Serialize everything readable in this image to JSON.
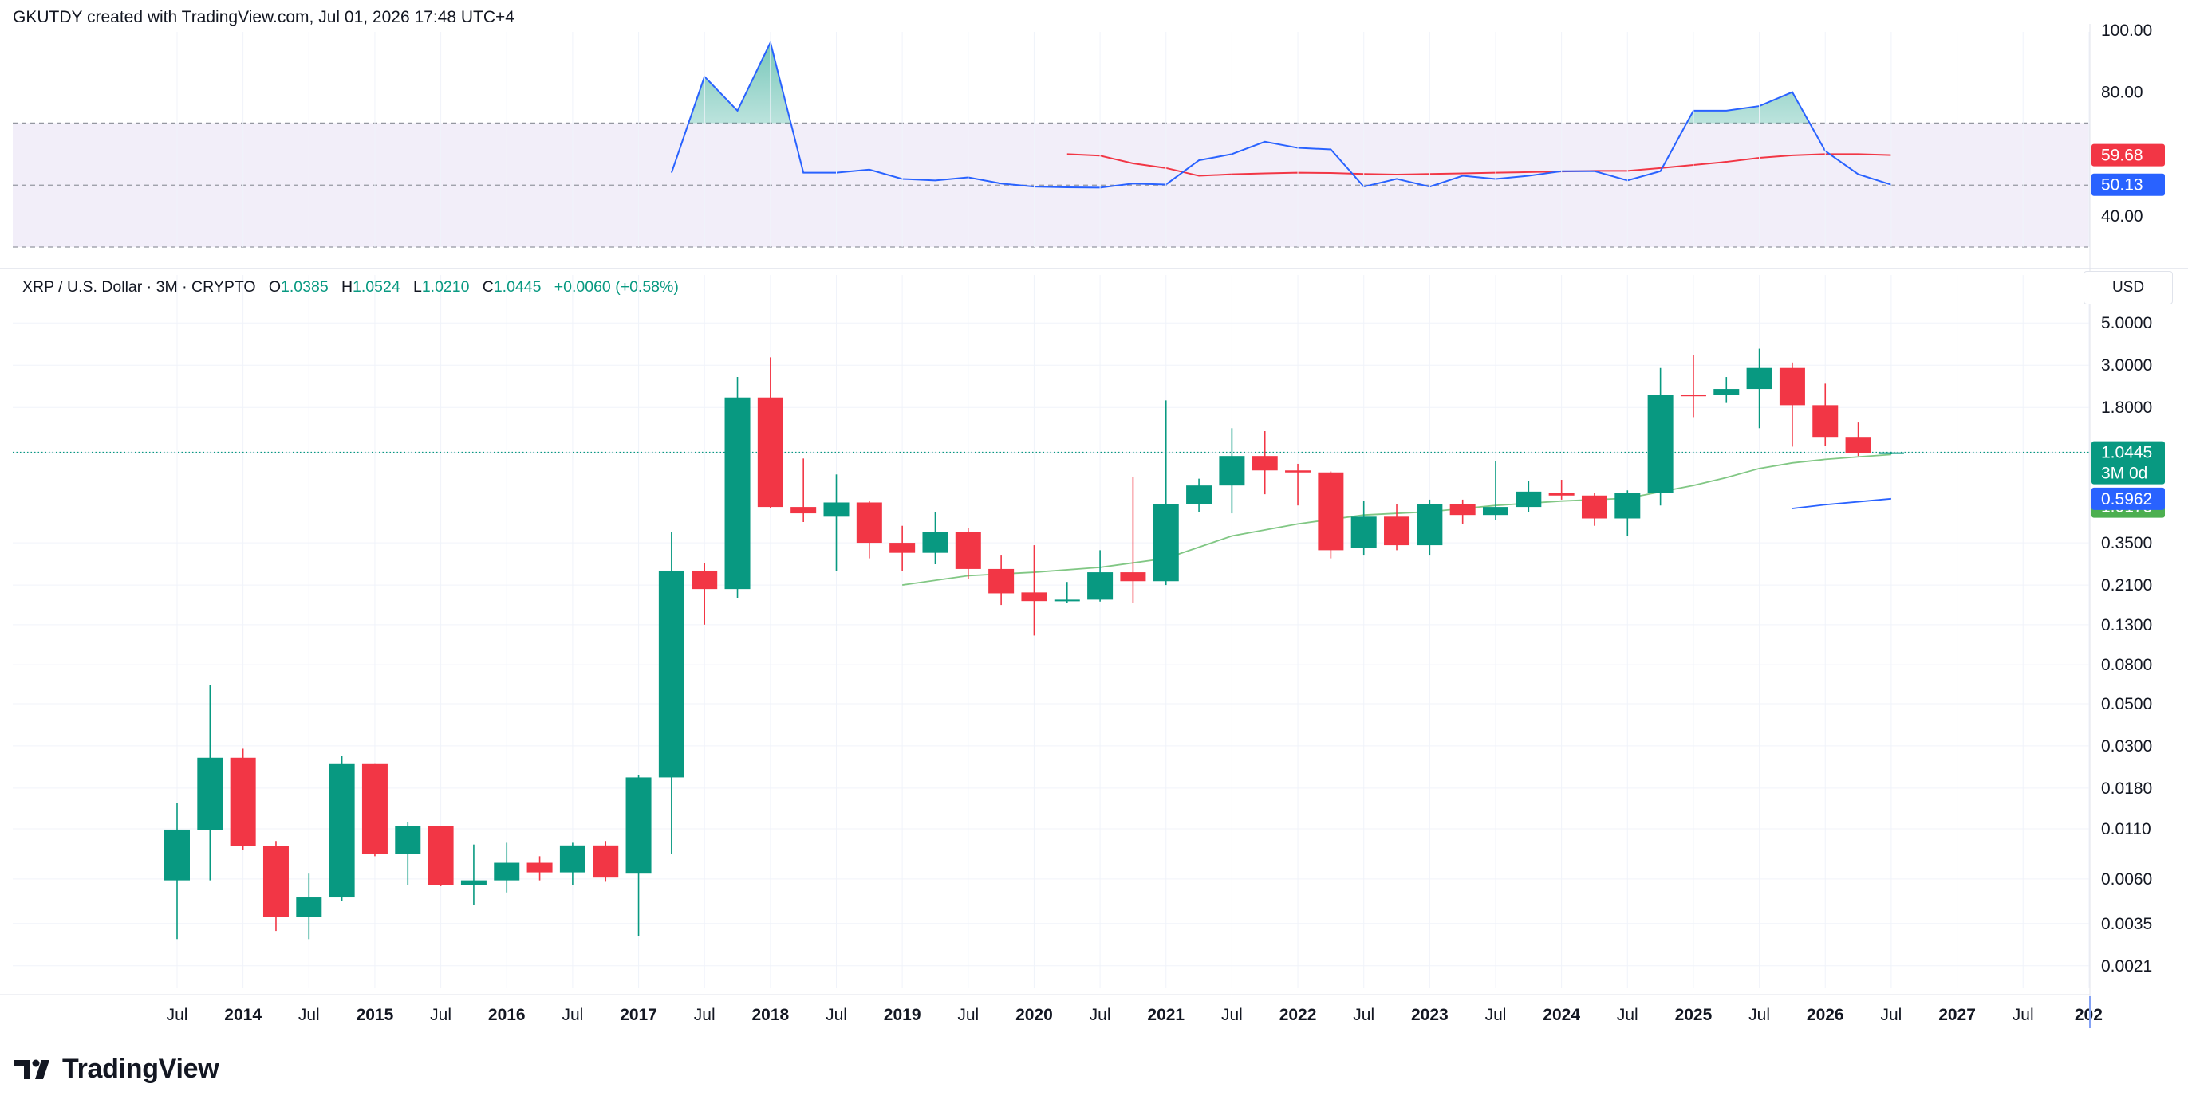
{
  "header": {
    "credit": "GKUTDY created with TradingView.com, Jul 01, 2026 17:48 UTC+4"
  },
  "legend": {
    "symbol": "XRP / U.S. Dollar · 3M · CRYPTO",
    "open_label": "O",
    "open": "1.0385",
    "high_label": "H",
    "high": "1.0524",
    "low_label": "L",
    "low": "1.0210",
    "close_label": "C",
    "close": "1.0445",
    "change": "+0.0060 (+0.58%)"
  },
  "currency": "USD",
  "footer": {
    "brand": "TradingView",
    "logo_icon": "tradingview-logo-icon"
  },
  "colors": {
    "up": "#089981",
    "down": "#f23645",
    "rsi_line": "#2962ff",
    "rsi_ma": "#f23645",
    "rsi_band": "#7e57c2",
    "ma_green": "#81c784",
    "ma_blue": "#2962ff"
  },
  "chart_data": [
    {
      "type": "line",
      "y_ticks": [
        "100.00",
        "80.00",
        "40.00"
      ],
      "ylim": [
        30,
        102
      ],
      "bands": {
        "upper": 70,
        "middle": 50,
        "lower": 30
      },
      "badges": [
        {
          "value": 59.68,
          "label": "59.68",
          "color": "#f23645"
        },
        {
          "value": 50.13,
          "label": "50.13",
          "color": "#2962ff"
        }
      ],
      "series": [
        {
          "t": [
            2017.25,
            2017.5,
            2017.75,
            2018.0,
            2018.25,
            2018.5,
            2018.75,
            2019.0,
            2019.25,
            2019.5,
            2019.75,
            2020.0,
            2020.25,
            2020.5,
            2020.75,
            2021.0,
            2021.25,
            2021.5,
            2021.75,
            2022.0,
            2022.25,
            2022.5,
            2022.75,
            2023.0,
            2023.25,
            2023.5,
            2023.75,
            2024.0,
            2024.25,
            2024.5,
            2024.75,
            2025.0,
            2025.25,
            2025.5,
            2025.75,
            2026.0,
            2026.25,
            2026.5
          ],
          "values": [
            54,
            85,
            74,
            96,
            54,
            54,
            55,
            52,
            51.5,
            52.5,
            50.5,
            49.5,
            49.3,
            49.2,
            50.5,
            50.2,
            58,
            60,
            64,
            62,
            61.5,
            49.5,
            52,
            49.5,
            53,
            52,
            53,
            54.5,
            54.5,
            51.5,
            54.5,
            74,
            74,
            75.5,
            80,
            61,
            53.5,
            50.13
          ]
        },
        {
          "t": [
            2020.25,
            2020.5,
            2020.75,
            2021.0,
            2021.25,
            2021.5,
            2021.75,
            2022.0,
            2022.25,
            2022.5,
            2022.75,
            2023.0,
            2023.25,
            2023.5,
            2023.75,
            2024.0,
            2024.25,
            2024.5,
            2024.75,
            2025.0,
            2025.25,
            2025.5,
            2025.75,
            2026.0,
            2026.25,
            2026.5
          ],
          "values": [
            60,
            59.5,
            57,
            55.5,
            53,
            53.5,
            53.8,
            54,
            53.9,
            53.6,
            53.4,
            53.6,
            53.8,
            54,
            54.2,
            54.4,
            54.6,
            54.6,
            55.5,
            56.5,
            57.5,
            58.8,
            59.6,
            60,
            60,
            59.68
          ]
        }
      ]
    },
    {
      "type": "candlestick",
      "title": "XRP / U.S. Dollar · 3M · CRYPTO",
      "scale": "log",
      "ylim": [
        0.0016,
        6.5
      ],
      "y_ticks": [
        "5.0000",
        "3.0000",
        "1.8000",
        "1.0445",
        "0.3500",
        "0.2100",
        "0.1300",
        "0.0800",
        "0.0500",
        "0.0300",
        "0.0180",
        "0.0110",
        "0.0060",
        "0.0035",
        "0.0021"
      ],
      "x_ticks": [
        "Jul",
        "2014",
        "Jul",
        "2015",
        "Jul",
        "2016",
        "Jul",
        "2017",
        "Jul",
        "2018",
        "Jul",
        "2019",
        "Jul",
        "2020",
        "Jul",
        "2021",
        "Jul",
        "2022",
        "Jul",
        "2023",
        "Jul",
        "2024",
        "Jul",
        "2025",
        "Jul",
        "2026",
        "Jul",
        "2027",
        "Jul",
        "202"
      ],
      "x_tick_years": [
        2013.5,
        2014.0,
        2014.5,
        2015.0,
        2015.5,
        2016.0,
        2016.5,
        2017.0,
        2017.5,
        2018.0,
        2018.5,
        2019.0,
        2019.5,
        2020.0,
        2020.5,
        2021.0,
        2021.5,
        2022.0,
        2022.5,
        2023.0,
        2023.5,
        2024.0,
        2024.5,
        2025.0,
        2025.5,
        2026.0,
        2026.5,
        2027.0,
        2027.5,
        2028.0
      ],
      "candles": [
        {
          "t": 2013.5,
          "o": 0.0059,
          "h": 0.015,
          "l": 0.0029,
          "c": 0.0109
        },
        {
          "t": 2013.75,
          "o": 0.0108,
          "h": 0.063,
          "l": 0.0059,
          "c": 0.026
        },
        {
          "t": 2014.0,
          "o": 0.026,
          "h": 0.029,
          "l": 0.0085,
          "c": 0.0089
        },
        {
          "t": 2014.25,
          "o": 0.0089,
          "h": 0.0095,
          "l": 0.0032,
          "c": 0.0038
        },
        {
          "t": 2014.5,
          "o": 0.0038,
          "h": 0.0064,
          "l": 0.0029,
          "c": 0.0048
        },
        {
          "t": 2014.75,
          "o": 0.0048,
          "h": 0.0265,
          "l": 0.0046,
          "c": 0.0243
        },
        {
          "t": 2015.0,
          "o": 0.0243,
          "h": 0.0243,
          "l": 0.0079,
          "c": 0.0081
        },
        {
          "t": 2015.25,
          "o": 0.0081,
          "h": 0.012,
          "l": 0.0056,
          "c": 0.0114
        },
        {
          "t": 2015.5,
          "o": 0.0114,
          "h": 0.0114,
          "l": 0.0055,
          "c": 0.0056
        },
        {
          "t": 2015.75,
          "o": 0.0056,
          "h": 0.0091,
          "l": 0.0044,
          "c": 0.0059
        },
        {
          "t": 2016.0,
          "o": 0.0059,
          "h": 0.0093,
          "l": 0.0051,
          "c": 0.0073
        },
        {
          "t": 2016.25,
          "o": 0.0073,
          "h": 0.0079,
          "l": 0.0059,
          "c": 0.0065
        },
        {
          "t": 2016.5,
          "o": 0.0065,
          "h": 0.0093,
          "l": 0.0056,
          "c": 0.009
        },
        {
          "t": 2016.75,
          "o": 0.009,
          "h": 0.0095,
          "l": 0.0058,
          "c": 0.0061
        },
        {
          "t": 2017.0,
          "o": 0.0064,
          "h": 0.021,
          "l": 0.003,
          "c": 0.0205
        },
        {
          "t": 2017.25,
          "o": 0.0205,
          "h": 0.4,
          "l": 0.0081,
          "c": 0.25
        },
        {
          "t": 2017.5,
          "o": 0.25,
          "h": 0.274,
          "l": 0.13,
          "c": 0.2
        },
        {
          "t": 2017.75,
          "o": 0.2,
          "h": 2.6,
          "l": 0.18,
          "c": 2.03
        },
        {
          "t": 2018.0,
          "o": 2.03,
          "h": 3.3,
          "l": 0.53,
          "c": 0.54
        },
        {
          "t": 2018.25,
          "o": 0.54,
          "h": 0.97,
          "l": 0.45,
          "c": 0.5
        },
        {
          "t": 2018.5,
          "o": 0.48,
          "h": 0.8,
          "l": 0.25,
          "c": 0.57
        },
        {
          "t": 2018.75,
          "o": 0.57,
          "h": 0.58,
          "l": 0.29,
          "c": 0.35
        },
        {
          "t": 2019.0,
          "o": 0.35,
          "h": 0.43,
          "l": 0.25,
          "c": 0.31
        },
        {
          "t": 2019.25,
          "o": 0.31,
          "h": 0.51,
          "l": 0.27,
          "c": 0.4
        },
        {
          "t": 2019.5,
          "o": 0.4,
          "h": 0.42,
          "l": 0.225,
          "c": 0.255
        },
        {
          "t": 2019.75,
          "o": 0.255,
          "h": 0.3,
          "l": 0.165,
          "c": 0.19
        },
        {
          "t": 2020.0,
          "o": 0.192,
          "h": 0.34,
          "l": 0.114,
          "c": 0.173
        },
        {
          "t": 2020.25,
          "o": 0.173,
          "h": 0.218,
          "l": 0.17,
          "c": 0.176
        },
        {
          "t": 2020.5,
          "o": 0.176,
          "h": 0.32,
          "l": 0.172,
          "c": 0.245
        },
        {
          "t": 2020.75,
          "o": 0.245,
          "h": 0.78,
          "l": 0.17,
          "c": 0.22
        },
        {
          "t": 2021.0,
          "o": 0.22,
          "h": 1.96,
          "l": 0.21,
          "c": 0.56
        },
        {
          "t": 2021.25,
          "o": 0.56,
          "h": 0.76,
          "l": 0.51,
          "c": 0.7
        },
        {
          "t": 2021.5,
          "o": 0.7,
          "h": 1.4,
          "l": 0.5,
          "c": 1.0
        },
        {
          "t": 2021.75,
          "o": 1.0,
          "h": 1.35,
          "l": 0.63,
          "c": 0.84
        },
        {
          "t": 2022.0,
          "o": 0.84,
          "h": 0.91,
          "l": 0.55,
          "c": 0.82
        },
        {
          "t": 2022.25,
          "o": 0.82,
          "h": 0.83,
          "l": 0.29,
          "c": 0.32
        },
        {
          "t": 2022.5,
          "o": 0.33,
          "h": 0.58,
          "l": 0.3,
          "c": 0.48
        },
        {
          "t": 2022.75,
          "o": 0.48,
          "h": 0.56,
          "l": 0.32,
          "c": 0.34
        },
        {
          "t": 2023.0,
          "o": 0.34,
          "h": 0.59,
          "l": 0.3,
          "c": 0.56
        },
        {
          "t": 2023.25,
          "o": 0.56,
          "h": 0.59,
          "l": 0.44,
          "c": 0.49
        },
        {
          "t": 2023.5,
          "o": 0.49,
          "h": 0.94,
          "l": 0.46,
          "c": 0.54
        },
        {
          "t": 2023.75,
          "o": 0.54,
          "h": 0.74,
          "l": 0.51,
          "c": 0.65
        },
        {
          "t": 2024.0,
          "o": 0.64,
          "h": 0.75,
          "l": 0.59,
          "c": 0.62
        },
        {
          "t": 2024.25,
          "o": 0.62,
          "h": 0.64,
          "l": 0.43,
          "c": 0.47
        },
        {
          "t": 2024.5,
          "o": 0.47,
          "h": 0.66,
          "l": 0.38,
          "c": 0.64
        },
        {
          "t": 2024.75,
          "o": 0.64,
          "h": 2.9,
          "l": 0.55,
          "c": 2.1
        },
        {
          "t": 2025.0,
          "o": 2.1,
          "h": 3.4,
          "l": 1.6,
          "c": 2.09
        },
        {
          "t": 2025.25,
          "o": 2.09,
          "h": 2.6,
          "l": 1.9,
          "c": 2.25
        },
        {
          "t": 2025.5,
          "o": 2.25,
          "h": 3.66,
          "l": 1.4,
          "c": 2.9
        },
        {
          "t": 2025.75,
          "o": 2.9,
          "h": 3.1,
          "l": 1.12,
          "c": 1.85
        },
        {
          "t": 2026.0,
          "o": 1.85,
          "h": 2.4,
          "l": 1.13,
          "c": 1.26
        },
        {
          "t": 2026.25,
          "o": 1.26,
          "h": 1.5,
          "l": 1.0,
          "c": 1.0385
        },
        {
          "t": 2026.5,
          "o": 1.0385,
          "h": 1.0524,
          "l": 1.021,
          "c": 1.0445
        }
      ],
      "series": [
        {
          "t": [
            2019.0,
            2019.5,
            2020.0,
            2020.5,
            2021.0,
            2021.5,
            2022.0,
            2022.5,
            2023.0,
            2023.5,
            2024.0,
            2024.5,
            2025.0,
            2025.25,
            2025.5,
            2025.75,
            2026.0,
            2026.25,
            2026.5
          ],
          "values": [
            0.21,
            0.235,
            0.245,
            0.26,
            0.29,
            0.38,
            0.44,
            0.49,
            0.51,
            0.55,
            0.58,
            0.6,
            0.7,
            0.77,
            0.86,
            0.92,
            0.96,
            0.99,
            1.0173
          ]
        },
        {
          "t": [
            2025.75,
            2026.0,
            2026.25,
            2026.5
          ],
          "values": [
            0.53,
            0.555,
            0.575,
            0.5962
          ]
        }
      ],
      "price_badges": [
        {
          "value": 1.0445,
          "label": "1.0445",
          "sub": "3M 0d",
          "color": "#089981"
        },
        {
          "value": 1.0173,
          "label": "1.0173",
          "color": "#4caf50"
        },
        {
          "value": 0.5962,
          "label": "0.5962",
          "color": "#2962ff"
        }
      ]
    }
  ]
}
